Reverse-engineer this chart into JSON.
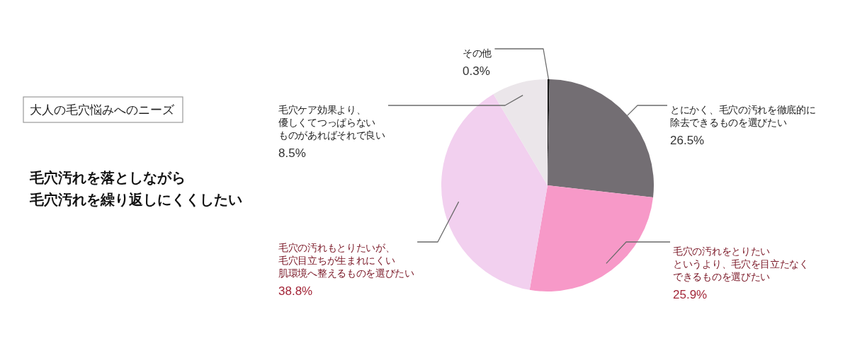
{
  "chart_data": {
    "type": "pie",
    "title": "大人の毛穴悩みへのニーズ",
    "subtitle": "毛穴汚れを落としながら毛穴汚れを繰り返しにくくしたい",
    "categories": [
      "その他",
      "とにかく、毛穴の汚れを徹底的に除去できるものを選びたい",
      "毛穴の汚れをとりたいというより、毛穴を目立たなくできるものを選びたい",
      "毛穴の汚れもとりたいが、毛穴目立ちが生まれにくい肌環境へ整えるものを選びたい",
      "毛穴ケア効果より、優しくてつっぱらないものがあればそれで良い"
    ],
    "values": [
      0.3,
      26.5,
      25.9,
      38.8,
      8.5
    ],
    "value_labels": [
      "0.3%",
      "26.5%",
      "25.9%",
      "38.8%",
      "8.5%"
    ],
    "colors": [
      "#1a1a1a",
      "#736e73",
      "#f799c8",
      "#f2d0ef",
      "#ebe6ea"
    ]
  }
}
